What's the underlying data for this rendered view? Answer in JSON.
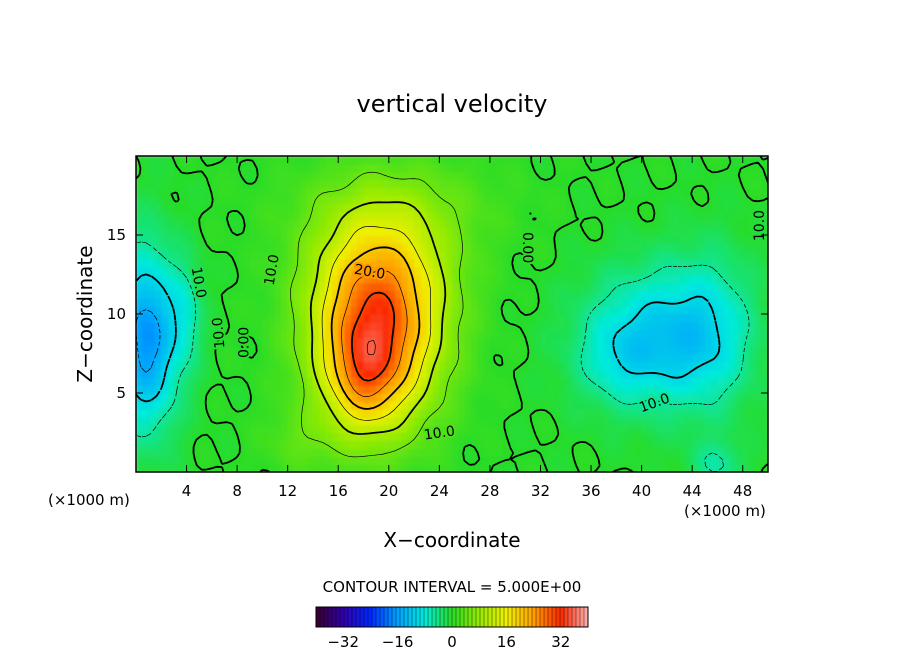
{
  "chart_data": {
    "type": "heatmap",
    "title": "vertical velocity",
    "xlabel": "X−coordinate",
    "ylabel": "Z−coordinate",
    "x_unit_left": "(×1000 m)",
    "x_unit_right": "(×1000 m)",
    "xlim": [
      0,
      50
    ],
    "ylim": [
      0,
      20
    ],
    "x_ticks": [
      4,
      8,
      12,
      16,
      20,
      24,
      28,
      32,
      36,
      40,
      44,
      48
    ],
    "y_ticks": [
      5,
      10,
      15
    ],
    "contour_interval_label": "CONTOUR INTERVAL = 5.000E+00",
    "contour_labels": [
      "0.00",
      "10.0",
      "20.0",
      "10.0",
      "0.00",
      "10.0",
      "10.0",
      "10.0",
      "10.0"
    ],
    "colorbar": {
      "range": [
        -40,
        40
      ],
      "ticks": [
        -32,
        -16,
        0,
        16,
        32
      ],
      "tick_labels": [
        "−32",
        "−16",
        "0",
        "16",
        "32"
      ]
    },
    "features": [
      {
        "kind": "updraft",
        "x": 19,
        "z": 7,
        "peak": 36
      },
      {
        "kind": "downdraft",
        "x": 1,
        "z": 8.5,
        "peak": -14
      },
      {
        "kind": "downdraft",
        "x": 42,
        "z": 9,
        "peak": -14
      }
    ]
  }
}
